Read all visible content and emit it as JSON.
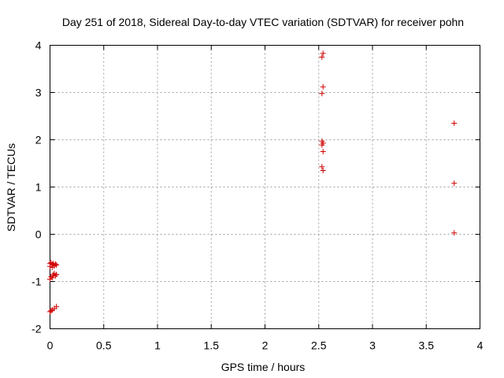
{
  "chart_data": {
    "type": "scatter",
    "title": "Day 251 of 2018, Sidereal Day-to-day VTEC variation (SDTVAR) for receiver pohn",
    "xlabel": "GPS time / hours",
    "ylabel": "SDTVAR / TECUs",
    "xlim": [
      0,
      4
    ],
    "ylim": [
      -2,
      4
    ],
    "xticks": [
      0,
      0.5,
      1,
      1.5,
      2,
      2.5,
      3,
      3.5,
      4
    ],
    "xtick_labels": [
      "0",
      "0.5",
      "1",
      "1.5",
      "2",
      "2.5",
      "3",
      "3.5",
      "4"
    ],
    "yticks": [
      -2,
      -1,
      0,
      1,
      2,
      3,
      4
    ],
    "ytick_labels": [
      "-2",
      "-1",
      "0",
      "1",
      "2",
      "3",
      "4"
    ],
    "grid": true,
    "marker": "+",
    "marker_color": "#d00000",
    "series": [
      {
        "name": "SDTVAR",
        "points": [
          [
            0.0,
            -0.62
          ],
          [
            0.01,
            -0.6
          ],
          [
            0.02,
            -0.64
          ],
          [
            0.03,
            -0.62
          ],
          [
            0.04,
            -0.66
          ],
          [
            0.05,
            -0.63
          ],
          [
            0.06,
            -0.65
          ],
          [
            0.0,
            -0.68
          ],
          [
            0.02,
            -0.7
          ],
          [
            0.04,
            -0.67
          ],
          [
            0.01,
            -0.9
          ],
          [
            0.03,
            -0.86
          ],
          [
            0.04,
            -0.83
          ],
          [
            0.05,
            -0.88
          ],
          [
            0.06,
            -0.85
          ],
          [
            0.0,
            -0.95
          ],
          [
            0.02,
            -0.92
          ],
          [
            0.0,
            -1.64
          ],
          [
            0.01,
            -1.62
          ],
          [
            0.02,
            -1.6
          ],
          [
            0.04,
            -1.57
          ],
          [
            0.06,
            -1.53
          ],
          [
            2.54,
            3.83
          ],
          [
            2.53,
            3.75
          ],
          [
            2.54,
            3.12
          ],
          [
            2.53,
            2.98
          ],
          [
            2.53,
            1.97
          ],
          [
            2.54,
            1.93
          ],
          [
            2.53,
            1.89
          ],
          [
            2.54,
            1.75
          ],
          [
            2.53,
            1.43
          ],
          [
            2.54,
            1.35
          ],
          [
            3.76,
            2.35
          ],
          [
            3.76,
            1.08
          ],
          [
            3.76,
            0.03
          ]
        ]
      }
    ]
  }
}
